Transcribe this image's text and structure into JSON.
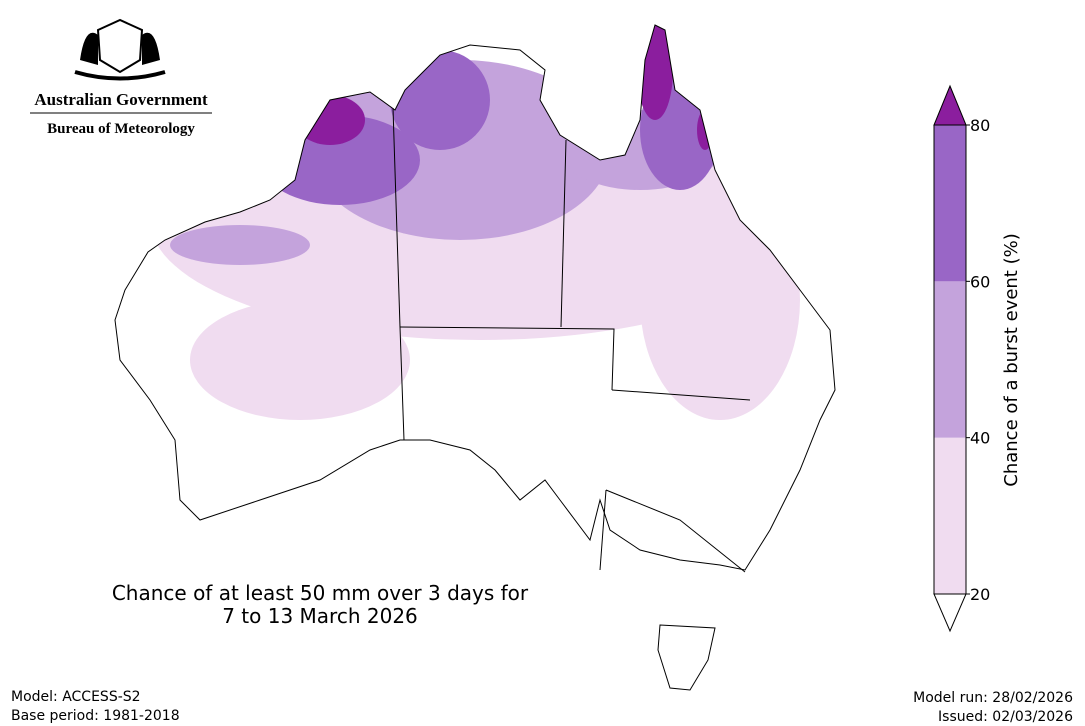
{
  "logo": {
    "line1": "Australian Government",
    "line2": "Bureau of Meteorology"
  },
  "map": {
    "title_lines": [
      "Chance of at least 50 mm over 3 days for",
      "7 to 13 March 2026"
    ]
  },
  "colorbar": {
    "label": "Chance of a burst event (%)",
    "ticks": [
      20,
      40,
      60,
      80
    ],
    "colors": [
      "#f0dcf0",
      "#c4a3dc",
      "#9966c6"
    ],
    "over_color": "#8b1e9e",
    "under_color": "#ffffff"
  },
  "footer": {
    "model": "Model: ACCESS-S2",
    "base_period": "Base period: 1981-2018",
    "model_run": "Model run: 28/02/2026",
    "issued": "Issued: 02/03/2026"
  }
}
